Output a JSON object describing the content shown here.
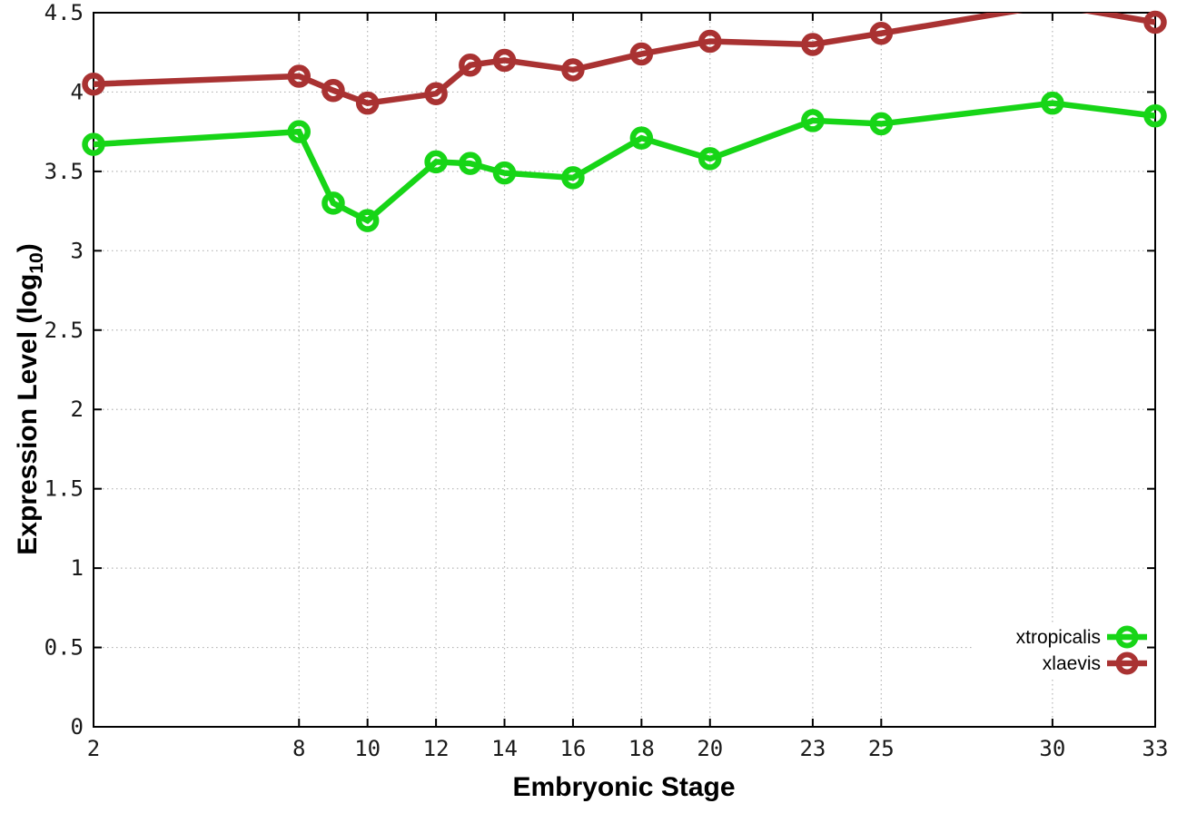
{
  "page": {
    "background": "#ffffff",
    "border_color": "#000000",
    "grid_color": "#b5b5b5",
    "text_color": "#1a1a1a"
  },
  "chart_data": {
    "type": "line",
    "title": "",
    "xlabel": "Embryonic Stage",
    "ylabel": "Expression Level (log10)",
    "ylabel_parts": {
      "main": "Expression Level (log",
      "sub": "10",
      "close": ")"
    },
    "xlim": [
      2,
      33
    ],
    "ylim": [
      0,
      4.5
    ],
    "grid": true,
    "x": [
      2,
      8,
      9,
      10,
      12,
      13,
      14,
      16,
      18,
      20,
      23,
      25,
      30,
      33
    ],
    "xtick_values": [
      2,
      8,
      10,
      12,
      14,
      16,
      18,
      20,
      23,
      25,
      30,
      33
    ],
    "xtick_labels": [
      "2",
      "8",
      "10",
      "12",
      "14",
      "16",
      "18",
      "20",
      "23",
      "25",
      "30",
      "33"
    ],
    "ytick_values": [
      0,
      0.5,
      1,
      1.5,
      2,
      2.5,
      3,
      3.5,
      4,
      4.5
    ],
    "ytick_labels": [
      "0",
      "0.5",
      "1",
      "1.5",
      "2",
      "2.5",
      "3",
      "3.5",
      "4",
      "4.5"
    ],
    "series": [
      {
        "name": "xtropicalis",
        "color": "#17d517",
        "marker": "open-circle",
        "values": [
          3.67,
          3.75,
          3.3,
          3.19,
          3.56,
          3.55,
          3.49,
          3.46,
          3.71,
          3.58,
          3.82,
          3.8,
          3.93,
          3.85
        ]
      },
      {
        "name": "xlaevis",
        "color": "#a93232",
        "marker": "open-circle",
        "values": [
          4.05,
          4.1,
          4.01,
          3.93,
          3.99,
          4.17,
          4.2,
          4.14,
          4.24,
          4.32,
          4.3,
          4.37,
          4.55,
          4.44
        ]
      }
    ],
    "legend_position": "inside-bottom-right",
    "note": "xlaevis value at stage 30 exceeds y-axis max 4.5; its line is clipped at the top border and its marker is not drawn"
  }
}
